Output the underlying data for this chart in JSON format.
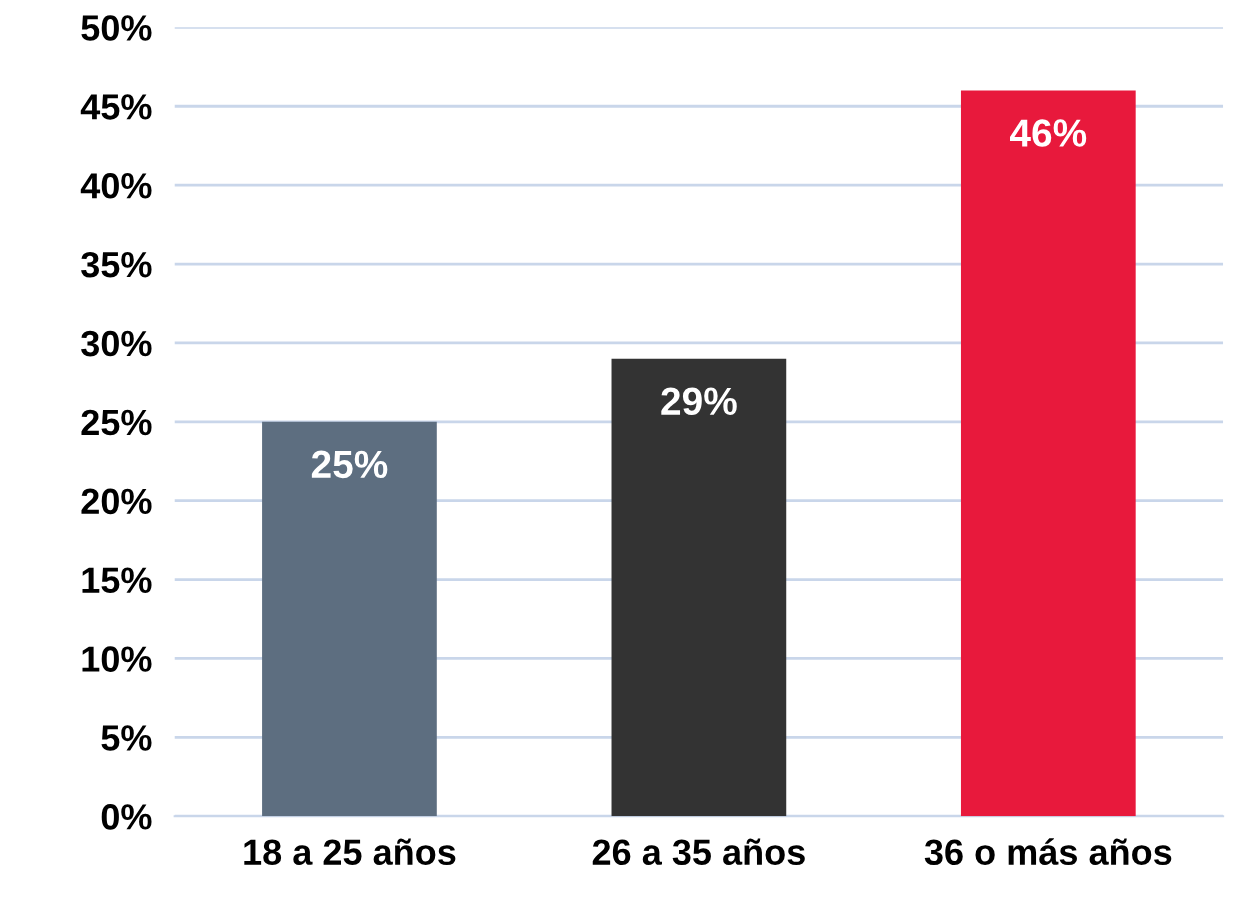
{
  "chart_data": {
    "type": "bar",
    "categories": [
      "18 a 25 años",
      "26 a 35 años",
      "36 o más años"
    ],
    "values": [
      25,
      29,
      46
    ],
    "colors": [
      "#5d6e80",
      "#333333",
      "#e8193c"
    ],
    "value_labels": [
      "25%",
      "29%",
      "46%"
    ],
    "ylim": [
      0,
      50
    ],
    "yticks": [
      {
        "value": 0,
        "label": "0%"
      },
      {
        "value": 5,
        "label": "5%"
      },
      {
        "value": 10,
        "label": "10%"
      },
      {
        "value": 15,
        "label": "15%"
      },
      {
        "value": 20,
        "label": "20%"
      },
      {
        "value": 25,
        "label": "25%"
      },
      {
        "value": 30,
        "label": "30%"
      },
      {
        "value": 35,
        "label": "35%"
      },
      {
        "value": 40,
        "label": "40%"
      },
      {
        "value": 45,
        "label": "45%"
      },
      {
        "value": 50,
        "label": "50%"
      }
    ],
    "grid": "y",
    "legend": false
  }
}
